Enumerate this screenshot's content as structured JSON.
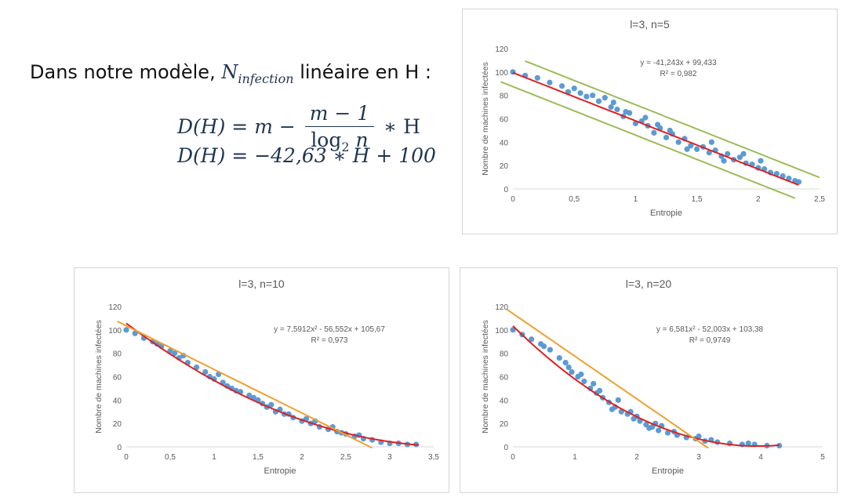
{
  "formula": {
    "intro_prefix": "Dans notre modèle, ",
    "intro_symbol": "N",
    "intro_subscript": "infection",
    "intro_suffix": " linéaire en H :",
    "eq1_lhs": "D(H) = m −",
    "eq1_num": "m − 1",
    "eq1_den_log": "log",
    "eq1_den_base": "2",
    "eq1_den_var": " n",
    "eq1_rhs": "∗ H",
    "eq2": "D(H) = −42,63 ∗ H + 100"
  },
  "chart_data": [
    {
      "type": "scatter",
      "title": "l=3, n=5",
      "xlabel": "Entropie",
      "ylabel": "Nombre de machines infectées",
      "xlim": [
        0,
        2.5
      ],
      "ylim": [
        0,
        120
      ],
      "xticks": [
        0,
        0.5,
        1,
        1.5,
        2,
        2.5
      ],
      "xtick_labels": [
        "0",
        "0,5",
        "1",
        "1,5",
        "2",
        "2,5"
      ],
      "yticks": [
        0,
        20,
        40,
        60,
        80,
        100,
        120
      ],
      "ytick_labels": [
        "0",
        "20",
        "40",
        "60",
        "80",
        "100",
        "120"
      ],
      "equation": "y = -41,243x + 99,433",
      "r2": "R² = 0,982",
      "point_color": "#5b9bd5",
      "points": [
        [
          0,
          100
        ],
        [
          0.1,
          97
        ],
        [
          0.2,
          95
        ],
        [
          0.3,
          91
        ],
        [
          0.4,
          88
        ],
        [
          0.5,
          86
        ],
        [
          0.55,
          82
        ],
        [
          0.6,
          79
        ],
        [
          0.7,
          75
        ],
        [
          0.75,
          78
        ],
        [
          0.8,
          70
        ],
        [
          0.85,
          68
        ],
        [
          0.9,
          62
        ],
        [
          0.95,
          65
        ],
        [
          1,
          56
        ],
        [
          1.05,
          58
        ],
        [
          1.1,
          54
        ],
        [
          1.15,
          48
        ],
        [
          1.2,
          52
        ],
        [
          1.25,
          44
        ],
        [
          1.3,
          47
        ],
        [
          1.35,
          40
        ],
        [
          1.4,
          43
        ],
        [
          1.45,
          37
        ],
        [
          1.5,
          34
        ],
        [
          1.55,
          36
        ],
        [
          1.6,
          31
        ],
        [
          1.65,
          33
        ],
        [
          1.7,
          28
        ],
        [
          1.75,
          30
        ],
        [
          1.8,
          25
        ],
        [
          1.85,
          27
        ],
        [
          1.9,
          22
        ],
        [
          1.95,
          21
        ],
        [
          2,
          18
        ],
        [
          2.05,
          17
        ],
        [
          2.1,
          14
        ],
        [
          2.15,
          13
        ],
        [
          2.2,
          11
        ],
        [
          2.25,
          9
        ],
        [
          2.3,
          7
        ],
        [
          2.33,
          6
        ],
        [
          0.65,
          80
        ],
        [
          0.92,
          66
        ],
        [
          1.08,
          61
        ],
        [
          1.28,
          50
        ],
        [
          1.62,
          40
        ],
        [
          1.88,
          30
        ],
        [
          0.45,
          83
        ],
        [
          1.42,
          34
        ],
        [
          1.72,
          24
        ],
        [
          2.02,
          24
        ],
        [
          0.82,
          74
        ],
        [
          1.18,
          55
        ]
      ],
      "fit_lines": [
        {
          "color": "#e02020",
          "kind": "poly",
          "coef": [
            0,
            -41.243,
            99.433
          ],
          "x": [
            0,
            2.33
          ]
        },
        {
          "color": "#9bbb59",
          "kind": "poly",
          "coef": [
            0,
            -41.5,
            113.5
          ],
          "x": [
            0.1,
            2.5
          ]
        },
        {
          "color": "#9bbb59",
          "kind": "poly",
          "coef": [
            0,
            -41.5,
            87.5
          ],
          "x": [
            -0.1,
            2.3
          ]
        }
      ]
    },
    {
      "type": "scatter",
      "title": "l=3, n=10",
      "xlabel": "Entropie",
      "ylabel": "Nombre de machines infectées",
      "xlim": [
        0,
        3.5
      ],
      "ylim": [
        0,
        120
      ],
      "xticks": [
        0,
        0.5,
        1,
        1.5,
        2,
        2.5,
        3,
        3.5
      ],
      "xtick_labels": [
        "0",
        "0,5",
        "1",
        "1,5",
        "2",
        "2,5",
        "3",
        "3,5"
      ],
      "yticks": [
        0,
        20,
        40,
        60,
        80,
        100,
        120
      ],
      "ytick_labels": [
        "0",
        "20",
        "40",
        "60",
        "80",
        "100",
        "120"
      ],
      "equation": "y = 7,5912x² - 56,552x + 105,67",
      "r2": "R² = 0,973",
      "point_color": "#5b9bd5",
      "points": [
        [
          0,
          100
        ],
        [
          0.1,
          97
        ],
        [
          0.2,
          93
        ],
        [
          0.3,
          90
        ],
        [
          0.4,
          86
        ],
        [
          0.5,
          82
        ],
        [
          0.55,
          80
        ],
        [
          0.6,
          76
        ],
        [
          0.7,
          72
        ],
        [
          0.8,
          68
        ],
        [
          0.9,
          64
        ],
        [
          1,
          58
        ],
        [
          1.05,
          62
        ],
        [
          1.1,
          55
        ],
        [
          1.2,
          50
        ],
        [
          1.3,
          47
        ],
        [
          1.4,
          44
        ],
        [
          1.5,
          40
        ],
        [
          1.55,
          37
        ],
        [
          1.6,
          34
        ],
        [
          1.7,
          30
        ],
        [
          1.8,
          28
        ],
        [
          1.9,
          25
        ],
        [
          2,
          22
        ],
        [
          2.1,
          20
        ],
        [
          2.2,
          17
        ],
        [
          2.3,
          15
        ],
        [
          2.4,
          13
        ],
        [
          2.5,
          11
        ],
        [
          2.6,
          9
        ],
        [
          2.7,
          7
        ],
        [
          2.8,
          6
        ],
        [
          2.9,
          4
        ],
        [
          3,
          3
        ],
        [
          3.1,
          3
        ],
        [
          3.2,
          2
        ],
        [
          3.3,
          2
        ],
        [
          0.65,
          78
        ],
        [
          0.95,
          60
        ],
        [
          1.15,
          52
        ],
        [
          1.45,
          42
        ],
        [
          1.75,
          32
        ],
        [
          2.05,
          24
        ],
        [
          2.35,
          17
        ],
        [
          2.65,
          10
        ],
        [
          1.25,
          48
        ],
        [
          1.85,
          28
        ],
        [
          2.15,
          22
        ],
        [
          0.35,
          88
        ],
        [
          1.65,
          36
        ],
        [
          2.45,
          12
        ]
      ],
      "fit_lines": [
        {
          "color": "#e02020",
          "kind": "poly",
          "coef": [
            7.5912,
            -56.552,
            105.67
          ],
          "x": [
            0,
            3.33
          ]
        },
        {
          "color": "#f0a030",
          "kind": "poly",
          "coef": [
            0,
            -37.3,
            103.5
          ],
          "x": [
            -0.1,
            2.8
          ]
        }
      ]
    },
    {
      "type": "scatter",
      "title": "l=3, n=20",
      "xlabel": "Entropie",
      "ylabel": "Nombre de machines infectées",
      "xlim": [
        0,
        5
      ],
      "ylim": [
        0,
        120
      ],
      "xticks": [
        0,
        1,
        2,
        3,
        4,
        5
      ],
      "xtick_labels": [
        "0",
        "1",
        "2",
        "3",
        "4",
        "5"
      ],
      "yticks": [
        0,
        20,
        40,
        60,
        80,
        100,
        120
      ],
      "ytick_labels": [
        "0",
        "20",
        "40",
        "60",
        "80",
        "100",
        "120"
      ],
      "equation": "y = 6,581x² - 52,003x + 103,38",
      "r2": "R² = 0,9749",
      "point_color": "#5b9bd5",
      "points": [
        [
          0,
          100
        ],
        [
          0.15,
          96
        ],
        [
          0.3,
          92
        ],
        [
          0.45,
          88
        ],
        [
          0.6,
          83
        ],
        [
          0.75,
          76
        ],
        [
          0.85,
          72
        ],
        [
          0.95,
          64
        ],
        [
          1.05,
          60
        ],
        [
          1.15,
          56
        ],
        [
          1.25,
          50
        ],
        [
          1.35,
          46
        ],
        [
          1.45,
          42
        ],
        [
          1.55,
          38
        ],
        [
          1.65,
          34
        ],
        [
          1.75,
          30
        ],
        [
          1.85,
          28
        ],
        [
          1.95,
          24
        ],
        [
          2.05,
          22
        ],
        [
          2.15,
          19
        ],
        [
          2.25,
          17
        ],
        [
          2.35,
          14
        ],
        [
          2.5,
          12
        ],
        [
          2.65,
          10
        ],
        [
          2.8,
          8
        ],
        [
          2.95,
          7
        ],
        [
          3.1,
          5
        ],
        [
          3.3,
          4
        ],
        [
          3.5,
          3
        ],
        [
          3.7,
          2
        ],
        [
          3.9,
          2
        ],
        [
          4.1,
          1
        ],
        [
          4.3,
          1
        ],
        [
          0.9,
          68
        ],
        [
          1.1,
          62
        ],
        [
          1.4,
          48
        ],
        [
          1.7,
          40
        ],
        [
          2,
          26
        ],
        [
          2.3,
          20
        ],
        [
          2.6,
          13
        ],
        [
          3,
          9
        ],
        [
          1.3,
          54
        ],
        [
          1.6,
          32
        ],
        [
          2.2,
          16
        ],
        [
          0.5,
          86
        ],
        [
          1.9,
          30
        ],
        [
          2.4,
          18
        ],
        [
          3.2,
          6
        ],
        [
          3.8,
          3
        ]
      ],
      "fit_lines": [
        {
          "color": "#e02020",
          "kind": "poly",
          "coef": [
            6.581,
            -52.003,
            103.38
          ],
          "x": [
            0,
            4.3
          ]
        },
        {
          "color": "#f0a030",
          "kind": "poly",
          "coef": [
            0,
            -36.5,
            114
          ],
          "x": [
            -0.1,
            3.15
          ]
        }
      ]
    }
  ]
}
